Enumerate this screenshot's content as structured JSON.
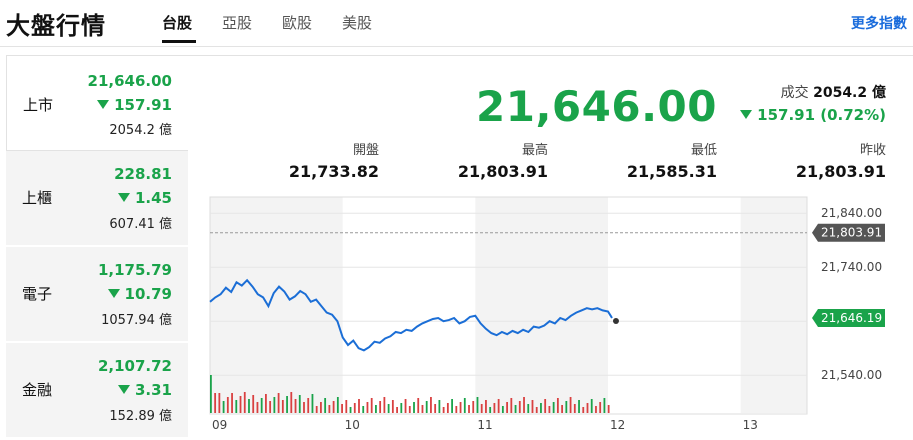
{
  "header": {
    "title": "大盤行情",
    "tabs": [
      {
        "label": "台股",
        "active": true
      },
      {
        "label": "亞股",
        "active": false
      },
      {
        "label": "歐股",
        "active": false
      },
      {
        "label": "美股",
        "active": false
      }
    ],
    "more": "更多指數"
  },
  "colors": {
    "up_down_green": "#1aa34a",
    "link_blue": "#1a6cdc"
  },
  "markets": [
    {
      "name": "上市",
      "price": "21,646.00",
      "change": "157.91",
      "direction": "down",
      "volume": "2054.2 億",
      "active": true
    },
    {
      "name": "上櫃",
      "price": "228.81",
      "change": "1.45",
      "direction": "down",
      "volume": "607.41 億",
      "active": false
    },
    {
      "name": "電子",
      "price": "1,175.79",
      "change": "10.79",
      "direction": "down",
      "volume": "1057.94 億",
      "active": false
    },
    {
      "name": "金融",
      "price": "2,107.72",
      "change": "3.31",
      "direction": "down",
      "volume": "152.89 億",
      "active": false
    }
  ],
  "summary": {
    "price": "21,646.00",
    "volume_label": "成交",
    "volume_value": "2054.2 億",
    "change": "157.91 (0.72%)",
    "stats": [
      {
        "label": "開盤",
        "value": "21,733.82"
      },
      {
        "label": "最高",
        "value": "21,803.91"
      },
      {
        "label": "最低",
        "value": "21,585.31"
      },
      {
        "label": "昨收",
        "value": "21,803.91"
      }
    ]
  },
  "chart_data": {
    "type": "line",
    "x_ticks": [
      "09",
      "10",
      "11",
      "12",
      "13"
    ],
    "y_ticks": [
      "21,840.00",
      "21,740.00",
      "21,540.00"
    ],
    "prev_close_label": "21,803.91",
    "last_label": "21,646.19",
    "ylim": [
      21470,
      21870
    ],
    "xlim": [
      9.0,
      13.5
    ],
    "series": [
      {
        "values": [
          [
            9.0,
            21676
          ],
          [
            9.04,
            21684
          ],
          [
            9.08,
            21690
          ],
          [
            9.12,
            21702
          ],
          [
            9.16,
            21694
          ],
          [
            9.2,
            21712
          ],
          [
            9.24,
            21706
          ],
          [
            9.28,
            21716
          ],
          [
            9.32,
            21704
          ],
          [
            9.36,
            21690
          ],
          [
            9.4,
            21684
          ],
          [
            9.44,
            21668
          ],
          [
            9.48,
            21692
          ],
          [
            9.52,
            21704
          ],
          [
            9.56,
            21695
          ],
          [
            9.6,
            21680
          ],
          [
            9.64,
            21686
          ],
          [
            9.68,
            21696
          ],
          [
            9.72,
            21690
          ],
          [
            9.76,
            21676
          ],
          [
            9.8,
            21680
          ],
          [
            9.84,
            21668
          ],
          [
            9.88,
            21656
          ],
          [
            9.92,
            21652
          ],
          [
            9.96,
            21640
          ],
          [
            10.0,
            21610
          ],
          [
            10.04,
            21596
          ],
          [
            10.08,
            21604
          ],
          [
            10.12,
            21590
          ],
          [
            10.16,
            21586
          ],
          [
            10.2,
            21592
          ],
          [
            10.24,
            21602
          ],
          [
            10.28,
            21600
          ],
          [
            10.32,
            21608
          ],
          [
            10.36,
            21612
          ],
          [
            10.4,
            21620
          ],
          [
            10.44,
            21618
          ],
          [
            10.48,
            21624
          ],
          [
            10.52,
            21622
          ],
          [
            10.56,
            21630
          ],
          [
            10.6,
            21636
          ],
          [
            10.64,
            21640
          ],
          [
            10.68,
            21644
          ],
          [
            10.72,
            21646
          ],
          [
            10.76,
            21640
          ],
          [
            10.8,
            21642
          ],
          [
            10.84,
            21646
          ],
          [
            10.88,
            21636
          ],
          [
            10.92,
            21640
          ],
          [
            10.96,
            21648
          ],
          [
            11.0,
            21650
          ],
          [
            11.04,
            21636
          ],
          [
            11.08,
            21626
          ],
          [
            11.12,
            21618
          ],
          [
            11.16,
            21614
          ],
          [
            11.2,
            21620
          ],
          [
            11.24,
            21616
          ],
          [
            11.28,
            21622
          ],
          [
            11.32,
            21618
          ],
          [
            11.36,
            21624
          ],
          [
            11.4,
            21620
          ],
          [
            11.44,
            21630
          ],
          [
            11.48,
            21628
          ],
          [
            11.52,
            21632
          ],
          [
            11.56,
            21640
          ],
          [
            11.6,
            21636
          ],
          [
            11.64,
            21646
          ],
          [
            11.68,
            21642
          ],
          [
            11.72,
            21650
          ],
          [
            11.76,
            21656
          ],
          [
            11.8,
            21660
          ],
          [
            11.84,
            21664
          ],
          [
            11.88,
            21662
          ],
          [
            11.92,
            21664
          ],
          [
            11.96,
            21660
          ],
          [
            12.0,
            21658
          ],
          [
            12.02,
            21650
          ],
          [
            12.03,
            21646
          ]
        ]
      }
    ],
    "volume_bars": 95
  }
}
